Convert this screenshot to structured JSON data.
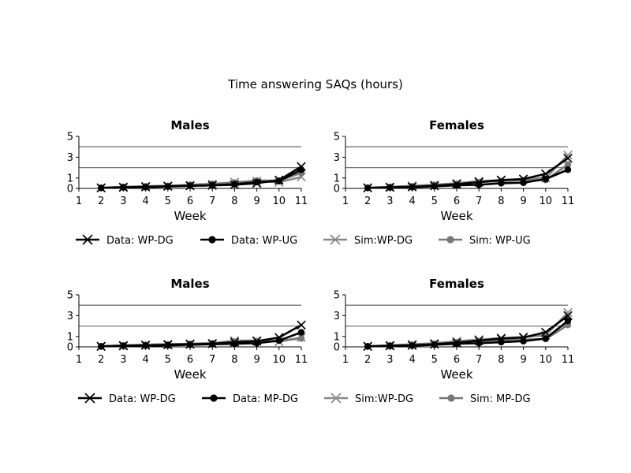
{
  "figure": {
    "title": "Time answering SAQs (hours)"
  },
  "chart_data": [
    {
      "type": "line",
      "title": "Males",
      "xlabel": "Week",
      "ylabel": "",
      "xlim": [
        1,
        11
      ],
      "ylim": [
        0,
        5
      ],
      "xticks": [
        "1",
        "2",
        "3",
        "4",
        "5",
        "6",
        "7",
        "8",
        "9",
        "10",
        "11"
      ],
      "yticks": [
        "0",
        "1",
        "3",
        "5"
      ],
      "reference_lines": [
        2,
        4
      ],
      "x": [
        2,
        3,
        4,
        5,
        6,
        7,
        8,
        9,
        10,
        11
      ],
      "series": [
        {
          "name": "Data: WP-DG",
          "color": "#000000",
          "marker": "x",
          "values": [
            0.05,
            0.1,
            0.15,
            0.2,
            0.25,
            0.3,
            0.35,
            0.5,
            0.8,
            2.1
          ]
        },
        {
          "name": "Data: WP-UG",
          "color": "#000000",
          "marker": "o",
          "values": [
            0.05,
            0.1,
            0.12,
            0.18,
            0.25,
            0.3,
            0.4,
            0.6,
            0.7,
            1.8
          ]
        },
        {
          "name": "Sim:WP-DG",
          "color": "#888888",
          "marker": "x",
          "values": [
            0.05,
            0.15,
            0.2,
            0.25,
            0.3,
            0.4,
            0.6,
            0.7,
            0.6,
            1.1
          ]
        },
        {
          "name": "Sim: WP-UG",
          "color": "#777777",
          "marker": "o",
          "values": [
            0.05,
            0.15,
            0.2,
            0.25,
            0.35,
            0.45,
            0.55,
            0.75,
            0.75,
            1.5
          ]
        }
      ]
    },
    {
      "type": "line",
      "title": "Females",
      "xlabel": "Week",
      "ylabel": "",
      "xlim": [
        1,
        11
      ],
      "ylim": [
        0,
        5
      ],
      "xticks": [
        "1",
        "2",
        "3",
        "4",
        "5",
        "6",
        "7",
        "8",
        "9",
        "10",
        "11"
      ],
      "yticks": [
        "0",
        "1",
        "3",
        "5"
      ],
      "reference_lines": [
        2,
        4
      ],
      "x": [
        2,
        3,
        4,
        5,
        6,
        7,
        8,
        9,
        10,
        11
      ],
      "series": [
        {
          "name": "Data: WP-DG",
          "color": "#000000",
          "marker": "x",
          "values": [
            0.05,
            0.1,
            0.15,
            0.25,
            0.4,
            0.6,
            0.8,
            0.9,
            1.4,
            2.9
          ]
        },
        {
          "name": "Data: WP-UG",
          "color": "#000000",
          "marker": "o",
          "values": [
            0.05,
            0.08,
            0.12,
            0.2,
            0.3,
            0.35,
            0.5,
            0.55,
            0.9,
            1.8
          ]
        },
        {
          "name": "Sim:WP-DG",
          "color": "#888888",
          "marker": "x",
          "values": [
            0.05,
            0.15,
            0.25,
            0.35,
            0.5,
            0.7,
            0.8,
            0.9,
            1.0,
            3.2
          ]
        },
        {
          "name": "Sim: WP-UG",
          "color": "#777777",
          "marker": "o",
          "values": [
            0.05,
            0.15,
            0.2,
            0.35,
            0.45,
            0.6,
            0.7,
            0.8,
            0.8,
            2.3
          ]
        }
      ]
    },
    {
      "type": "line",
      "title": "Males",
      "xlabel": "Week",
      "ylabel": "",
      "xlim": [
        1,
        11
      ],
      "ylim": [
        0,
        5
      ],
      "xticks": [
        "1",
        "2",
        "3",
        "4",
        "5",
        "6",
        "7",
        "8",
        "9",
        "10",
        "11"
      ],
      "yticks": [
        "0",
        "1",
        "3",
        "5"
      ],
      "reference_lines": [
        2,
        4
      ],
      "x": [
        2,
        3,
        4,
        5,
        6,
        7,
        8,
        9,
        10,
        11
      ],
      "series": [
        {
          "name": "Data: WP-DG",
          "color": "#000000",
          "marker": "x",
          "values": [
            0.05,
            0.1,
            0.15,
            0.2,
            0.25,
            0.3,
            0.45,
            0.55,
            0.9,
            2.1
          ]
        },
        {
          "name": "Data: MP-DG",
          "color": "#000000",
          "marker": "o",
          "values": [
            0.05,
            0.1,
            0.12,
            0.15,
            0.2,
            0.25,
            0.3,
            0.35,
            0.6,
            1.4
          ]
        },
        {
          "name": "Sim:WP-DG",
          "color": "#888888",
          "marker": "x",
          "values": [
            0.05,
            0.15,
            0.2,
            0.25,
            0.3,
            0.35,
            0.6,
            0.6,
            0.5,
            0.9
          ]
        },
        {
          "name": "Sim: MP-DG",
          "color": "#777777",
          "marker": "o",
          "values": [
            0.05,
            0.15,
            0.2,
            0.25,
            0.3,
            0.35,
            0.5,
            0.55,
            0.6,
            0.8
          ]
        }
      ]
    },
    {
      "type": "line",
      "title": "Females",
      "xlabel": "Week",
      "ylabel": "",
      "xlim": [
        1,
        11
      ],
      "ylim": [
        0,
        5
      ],
      "xticks": [
        "1",
        "2",
        "3",
        "4",
        "5",
        "6",
        "7",
        "8",
        "9",
        "10",
        "11"
      ],
      "yticks": [
        "0",
        "1",
        "3",
        "5"
      ],
      "reference_lines": [
        2,
        4
      ],
      "x": [
        2,
        3,
        4,
        5,
        6,
        7,
        8,
        9,
        10,
        11
      ],
      "series": [
        {
          "name": "Data: WP-DG",
          "color": "#000000",
          "marker": "x",
          "values": [
            0.05,
            0.1,
            0.15,
            0.25,
            0.4,
            0.6,
            0.8,
            0.9,
            1.4,
            3.0
          ]
        },
        {
          "name": "Data: MP-DG",
          "color": "#000000",
          "marker": "o",
          "values": [
            0.05,
            0.08,
            0.12,
            0.2,
            0.3,
            0.35,
            0.45,
            0.55,
            0.8,
            2.5
          ]
        },
        {
          "name": "Sim:WP-DG",
          "color": "#888888",
          "marker": "x",
          "values": [
            0.05,
            0.15,
            0.25,
            0.35,
            0.55,
            0.7,
            0.85,
            0.95,
            1.1,
            3.3
          ]
        },
        {
          "name": "Sim: MP-DG",
          "color": "#777777",
          "marker": "o",
          "values": [
            0.05,
            0.15,
            0.2,
            0.3,
            0.45,
            0.55,
            0.65,
            0.7,
            0.75,
            2.1
          ]
        }
      ]
    }
  ]
}
